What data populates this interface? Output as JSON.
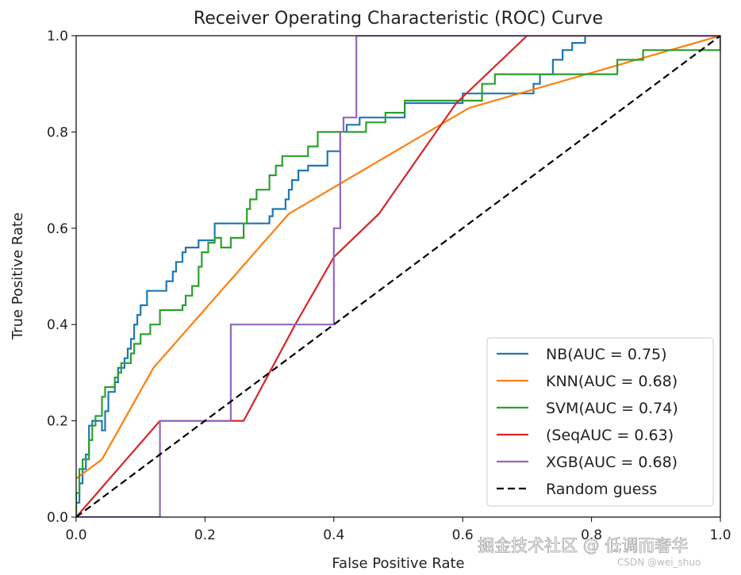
{
  "chart_data": {
    "type": "line",
    "title": "Receiver Operating Characteristic (ROC) Curve",
    "xlabel": "False Positive Rate",
    "ylabel": "True Positive Rate",
    "xlim": [
      0,
      1
    ],
    "ylim": [
      0,
      1
    ],
    "xticks": [
      "0.0",
      "0.2",
      "0.4",
      "0.6",
      "0.8",
      "1.0"
    ],
    "yticks": [
      "0.0",
      "0.2",
      "0.4",
      "0.6",
      "0.8",
      "1.0"
    ],
    "grid": false,
    "legend_position": "lower-right",
    "series": [
      {
        "name": "NB(AUC = 0.75)",
        "color": "#1f77b4",
        "style": "step",
        "points": [
          [
            0,
            0
          ],
          [
            0,
            0.03
          ],
          [
            0.005,
            0.03
          ],
          [
            0.005,
            0.07
          ],
          [
            0.01,
            0.07
          ],
          [
            0.01,
            0.1
          ],
          [
            0.015,
            0.1
          ],
          [
            0.015,
            0.13
          ],
          [
            0.02,
            0.13
          ],
          [
            0.02,
            0.19
          ],
          [
            0.025,
            0.19
          ],
          [
            0.025,
            0.2
          ],
          [
            0.04,
            0.2
          ],
          [
            0.04,
            0.18
          ],
          [
            0.045,
            0.18
          ],
          [
            0.045,
            0.22
          ],
          [
            0.05,
            0.22
          ],
          [
            0.05,
            0.26
          ],
          [
            0.06,
            0.26
          ],
          [
            0.06,
            0.28
          ],
          [
            0.065,
            0.28
          ],
          [
            0.065,
            0.31
          ],
          [
            0.075,
            0.31
          ],
          [
            0.075,
            0.33
          ],
          [
            0.08,
            0.33
          ],
          [
            0.08,
            0.35
          ],
          [
            0.085,
            0.35
          ],
          [
            0.085,
            0.37
          ],
          [
            0.09,
            0.37
          ],
          [
            0.09,
            0.4
          ],
          [
            0.095,
            0.4
          ],
          [
            0.095,
            0.42
          ],
          [
            0.1,
            0.42
          ],
          [
            0.1,
            0.44
          ],
          [
            0.11,
            0.44
          ],
          [
            0.11,
            0.47
          ],
          [
            0.14,
            0.47
          ],
          [
            0.14,
            0.49
          ],
          [
            0.15,
            0.49
          ],
          [
            0.15,
            0.51
          ],
          [
            0.155,
            0.51
          ],
          [
            0.155,
            0.53
          ],
          [
            0.165,
            0.53
          ],
          [
            0.165,
            0.55
          ],
          [
            0.17,
            0.55
          ],
          [
            0.17,
            0.56
          ],
          [
            0.19,
            0.56
          ],
          [
            0.19,
            0.575
          ],
          [
            0.215,
            0.575
          ],
          [
            0.215,
            0.61
          ],
          [
            0.28,
            0.61
          ],
          [
            0.28,
            0.61
          ],
          [
            0.3,
            0.61
          ],
          [
            0.3,
            0.625
          ],
          [
            0.305,
            0.625
          ],
          [
            0.305,
            0.64
          ],
          [
            0.325,
            0.64
          ],
          [
            0.325,
            0.66
          ],
          [
            0.33,
            0.66
          ],
          [
            0.33,
            0.68
          ],
          [
            0.335,
            0.68
          ],
          [
            0.335,
            0.7
          ],
          [
            0.345,
            0.7
          ],
          [
            0.345,
            0.72
          ],
          [
            0.36,
            0.72
          ],
          [
            0.36,
            0.73
          ],
          [
            0.39,
            0.73
          ],
          [
            0.39,
            0.76
          ],
          [
            0.41,
            0.76
          ],
          [
            0.41,
            0.8
          ],
          [
            0.42,
            0.8
          ],
          [
            0.42,
            0.815
          ],
          [
            0.44,
            0.815
          ],
          [
            0.44,
            0.83
          ],
          [
            0.5,
            0.83
          ],
          [
            0.5,
            0.83
          ],
          [
            0.51,
            0.83
          ],
          [
            0.51,
            0.86
          ],
          [
            0.6,
            0.86
          ],
          [
            0.6,
            0.88
          ],
          [
            0.71,
            0.88
          ],
          [
            0.71,
            0.9
          ],
          [
            0.72,
            0.9
          ],
          [
            0.72,
            0.92
          ],
          [
            0.74,
            0.92
          ],
          [
            0.74,
            0.95
          ],
          [
            0.755,
            0.95
          ],
          [
            0.755,
            0.97
          ],
          [
            0.77,
            0.97
          ],
          [
            0.77,
            0.985
          ],
          [
            0.79,
            0.985
          ],
          [
            0.79,
            1
          ],
          [
            1,
            1
          ]
        ]
      },
      {
        "name": "KNN(AUC = 0.68)",
        "color": "#ff7f0e",
        "style": "line",
        "points": [
          [
            0,
            0.08
          ],
          [
            0.04,
            0.12
          ],
          [
            0.12,
            0.31
          ],
          [
            0.33,
            0.63
          ],
          [
            0.61,
            0.85
          ],
          [
            1,
            1
          ]
        ]
      },
      {
        "name": "SVM(AUC = 0.74)",
        "color": "#2ca02c",
        "style": "step",
        "points": [
          [
            0,
            0
          ],
          [
            0,
            0.05
          ],
          [
            0.005,
            0.05
          ],
          [
            0.005,
            0.1
          ],
          [
            0.01,
            0.1
          ],
          [
            0.01,
            0.12
          ],
          [
            0.02,
            0.12
          ],
          [
            0.02,
            0.16
          ],
          [
            0.025,
            0.16
          ],
          [
            0.025,
            0.19
          ],
          [
            0.03,
            0.19
          ],
          [
            0.03,
            0.21
          ],
          [
            0.04,
            0.21
          ],
          [
            0.04,
            0.25
          ],
          [
            0.045,
            0.25
          ],
          [
            0.045,
            0.27
          ],
          [
            0.06,
            0.27
          ],
          [
            0.06,
            0.29
          ],
          [
            0.065,
            0.29
          ],
          [
            0.065,
            0.3
          ],
          [
            0.07,
            0.3
          ],
          [
            0.07,
            0.32
          ],
          [
            0.085,
            0.32
          ],
          [
            0.085,
            0.34
          ],
          [
            0.09,
            0.34
          ],
          [
            0.09,
            0.36
          ],
          [
            0.1,
            0.36
          ],
          [
            0.1,
            0.38
          ],
          [
            0.115,
            0.38
          ],
          [
            0.115,
            0.4
          ],
          [
            0.13,
            0.4
          ],
          [
            0.13,
            0.43
          ],
          [
            0.165,
            0.43
          ],
          [
            0.165,
            0.44
          ],
          [
            0.17,
            0.44
          ],
          [
            0.17,
            0.46
          ],
          [
            0.18,
            0.46
          ],
          [
            0.18,
            0.48
          ],
          [
            0.19,
            0.48
          ],
          [
            0.19,
            0.52
          ],
          [
            0.195,
            0.52
          ],
          [
            0.195,
            0.55
          ],
          [
            0.205,
            0.55
          ],
          [
            0.205,
            0.57
          ],
          [
            0.215,
            0.57
          ],
          [
            0.215,
            0.58
          ],
          [
            0.225,
            0.58
          ],
          [
            0.225,
            0.56
          ],
          [
            0.24,
            0.56
          ],
          [
            0.24,
            0.58
          ],
          [
            0.26,
            0.58
          ],
          [
            0.26,
            0.61
          ],
          [
            0.265,
            0.61
          ],
          [
            0.265,
            0.64
          ],
          [
            0.27,
            0.64
          ],
          [
            0.27,
            0.66
          ],
          [
            0.28,
            0.66
          ],
          [
            0.28,
            0.68
          ],
          [
            0.3,
            0.68
          ],
          [
            0.3,
            0.71
          ],
          [
            0.31,
            0.71
          ],
          [
            0.31,
            0.73
          ],
          [
            0.32,
            0.73
          ],
          [
            0.32,
            0.75
          ],
          [
            0.36,
            0.75
          ],
          [
            0.36,
            0.77
          ],
          [
            0.375,
            0.77
          ],
          [
            0.375,
            0.8
          ],
          [
            0.4,
            0.8
          ],
          [
            0.4,
            0.8
          ],
          [
            0.45,
            0.8
          ],
          [
            0.45,
            0.82
          ],
          [
            0.48,
            0.82
          ],
          [
            0.48,
            0.84
          ],
          [
            0.51,
            0.84
          ],
          [
            0.51,
            0.865
          ],
          [
            0.63,
            0.865
          ],
          [
            0.63,
            0.9
          ],
          [
            0.65,
            0.9
          ],
          [
            0.65,
            0.92
          ],
          [
            0.84,
            0.92
          ],
          [
            0.84,
            0.95
          ],
          [
            0.88,
            0.95
          ],
          [
            0.88,
            0.97
          ],
          [
            1,
            0.97
          ],
          [
            1,
            1
          ]
        ]
      },
      {
        "name": "(SeqAUC = 0.63)",
        "color": "#d62728",
        "style": "line",
        "points": [
          [
            0,
            0
          ],
          [
            0.13,
            0.2
          ],
          [
            0.26,
            0.2
          ],
          [
            0.34,
            0.4
          ],
          [
            0.4,
            0.54
          ],
          [
            0.47,
            0.63
          ],
          [
            0.59,
            0.86
          ],
          [
            0.7,
            1
          ],
          [
            1,
            1
          ]
        ]
      },
      {
        "name": "XGB(AUC = 0.68)",
        "color": "#9467bd",
        "style": "step",
        "points": [
          [
            0,
            0
          ],
          [
            0.13,
            0
          ],
          [
            0.13,
            0.2
          ],
          [
            0.24,
            0.2
          ],
          [
            0.24,
            0.4
          ],
          [
            0.4,
            0.4
          ],
          [
            0.4,
            0.6
          ],
          [
            0.41,
            0.6
          ],
          [
            0.41,
            0.8
          ],
          [
            0.415,
            0.8
          ],
          [
            0.415,
            0.83
          ],
          [
            0.435,
            0.83
          ],
          [
            0.435,
            1
          ],
          [
            1,
            1
          ]
        ]
      },
      {
        "name": "Random guess",
        "color": "#000000",
        "style": "dashed",
        "points": [
          [
            0,
            0
          ],
          [
            1,
            1
          ]
        ]
      }
    ]
  },
  "watermark": {
    "main": "掘金技术社区 @ 低调而奢华",
    "sub": "CSDN @wei_shuo"
  }
}
